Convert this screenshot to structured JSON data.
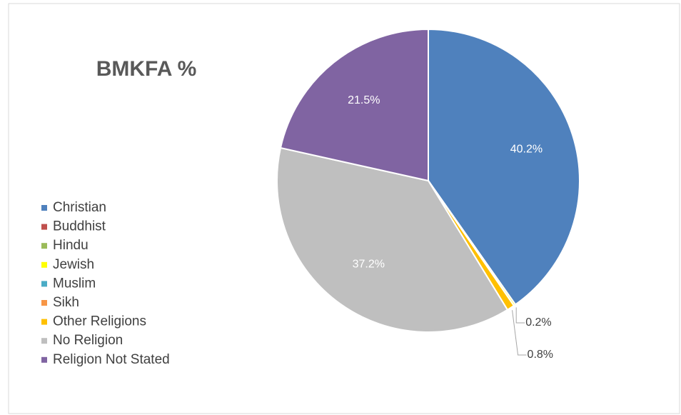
{
  "chart_data": {
    "type": "pie",
    "title": "BMKFA %",
    "categories": [
      "Christian",
      "Buddhist",
      "Hindu",
      "Jewish",
      "Muslim",
      "Sikh",
      "Other Religions",
      "No Religion",
      "Religion Not Stated"
    ],
    "values": [
      40.2,
      0,
      0,
      0.2,
      0,
      0,
      0.8,
      37.2,
      21.5
    ],
    "value_labels": [
      "40.2%",
      null,
      null,
      "0.2%",
      null,
      null,
      "0.8%",
      "37.2%",
      "21.5%"
    ],
    "colors": [
      "#4f81bd",
      "#c0504d",
      "#9bbb59",
      "#ffff00",
      "#4bacc6",
      "#f79646",
      "#ffc000",
      "#bfbfbf",
      "#8064a2"
    ],
    "legend": "left"
  }
}
